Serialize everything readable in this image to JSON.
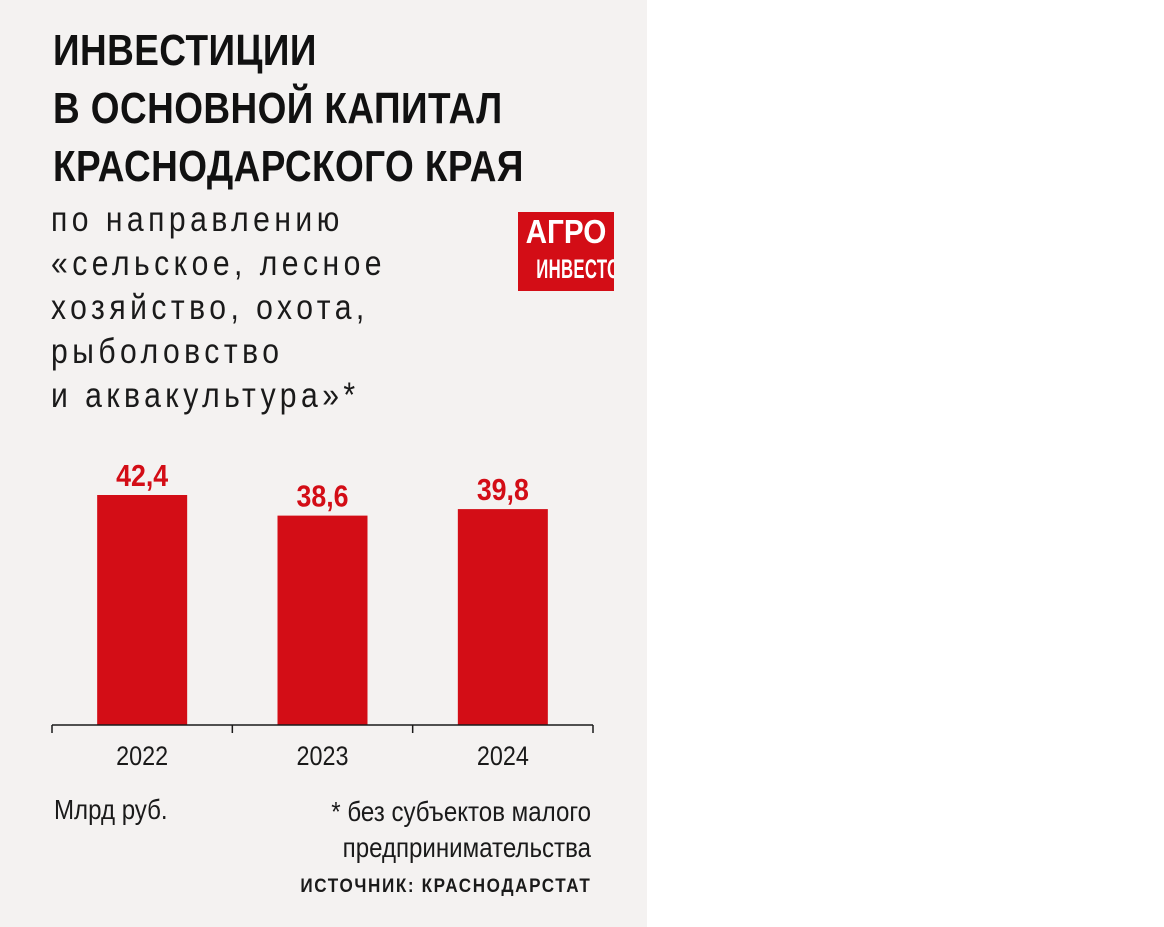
{
  "title_lines": [
    "ИНВЕСТИЦИИ",
    "В ОСНОВНОЙ КАПИТАЛ",
    "КРАСНОДАРСКОГО КРАЯ"
  ],
  "subtitle_lines": [
    "по направлению",
    "«сельское, лесное",
    "хозяйство, охота,",
    "рыболовство",
    "и аквакультура»*"
  ],
  "logo": {
    "line1": "АГРО",
    "line2": "ИНВЕСТОР"
  },
  "unit": "Млрд руб.",
  "footnote_lines": [
    "* без субъектов малого",
    "предпринимательства"
  ],
  "source": "ИСТОЧНИК: КРАСНОДАРСТАТ",
  "colors": {
    "bar": "#d30d16",
    "label": "#d30d16",
    "background": "#f4f2f1",
    "text": "#1a1a1a"
  },
  "chart_data": {
    "type": "bar",
    "categories": [
      "2022",
      "2023",
      "2024"
    ],
    "values": [
      42.4,
      38.6,
      39.8
    ],
    "value_labels": [
      "42,4",
      "38,6",
      "39,8"
    ],
    "title": "ИНВЕСТИЦИИ В ОСНОВНОЙ КАПИТАЛ КРАСНОДАРСКОГО КРАЯ",
    "xlabel": "",
    "ylabel": "",
    "unit": "Млрд руб.",
    "ylim": [
      0,
      42.4
    ],
    "grid": false,
    "legend": "none"
  }
}
